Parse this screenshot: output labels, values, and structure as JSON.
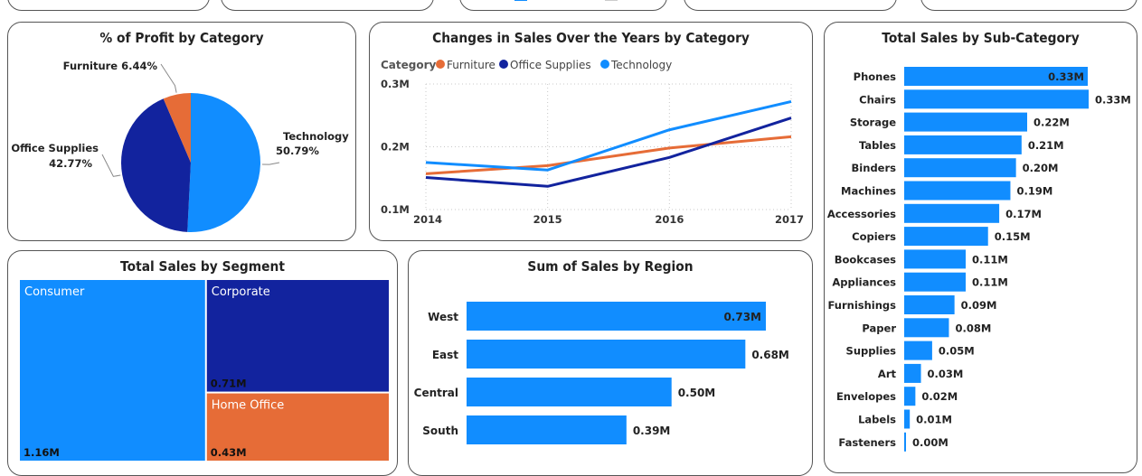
{
  "colors": {
    "furniture": "#E66C37",
    "office_supplies": "#12239E",
    "technology": "#118DFF"
  },
  "profit_by_category": {
    "title": "% of Profit by Category",
    "chart_data": {
      "type": "pie",
      "slices": [
        {
          "name": "Technology",
          "value": 50.79,
          "label": "50.79%",
          "color": "#118DFF"
        },
        {
          "name": "Office Supplies",
          "value": 42.77,
          "label": "42.77%",
          "color": "#12239E"
        },
        {
          "name": "Furniture",
          "value": 6.44,
          "label": "6.44%",
          "color": "#E66C37"
        }
      ]
    }
  },
  "sales_over_years": {
    "title": "Changes in Sales Over the Years by Category",
    "legend_title": "Category",
    "chart_data": {
      "type": "line",
      "x": [
        "2014",
        "2015",
        "2016",
        "2017"
      ],
      "ylim": [
        0.1,
        0.3
      ],
      "yticks": [
        "0.1M",
        "0.2M",
        "0.3M"
      ],
      "ytick_values": [
        0.1,
        0.2,
        0.3
      ],
      "series": [
        {
          "name": "Furniture",
          "values": [
            0.157,
            0.17,
            0.198,
            0.216
          ],
          "color": "#E66C37"
        },
        {
          "name": "Office Supplies",
          "values": [
            0.151,
            0.137,
            0.183,
            0.246
          ],
          "color": "#12239E"
        },
        {
          "name": "Technology",
          "values": [
            0.175,
            0.163,
            0.227,
            0.272
          ],
          "color": "#118DFF"
        }
      ]
    }
  },
  "sales_by_subcategory": {
    "title": "Total Sales by Sub-Category",
    "chart_data": {
      "type": "bar",
      "orientation": "horizontal",
      "categories": [
        "Phones",
        "Chairs",
        "Storage",
        "Tables",
        "Binders",
        "Machines",
        "Accessories",
        "Copiers",
        "Bookcases",
        "Appliances",
        "Furnishings",
        "Paper",
        "Supplies",
        "Art",
        "Envelopes",
        "Labels",
        "Fasteners"
      ],
      "values": [
        0.33,
        0.33,
        0.22,
        0.21,
        0.2,
        0.19,
        0.17,
        0.15,
        0.11,
        0.11,
        0.09,
        0.08,
        0.05,
        0.03,
        0.02,
        0.01,
        0.0
      ],
      "labels": [
        "0.33M",
        "0.33M",
        "0.22M",
        "0.21M",
        "0.20M",
        "0.19M",
        "0.17M",
        "0.15M",
        "0.11M",
        "0.11M",
        "0.09M",
        "0.08M",
        "0.05M",
        "0.03M",
        "0.02M",
        "0.01M",
        "0.00M"
      ],
      "bar_color": "#118DFF"
    }
  },
  "sales_by_segment": {
    "title": "Total Sales by Segment",
    "chart_data": {
      "type": "treemap",
      "items": [
        {
          "name": "Consumer",
          "value": 1.16,
          "label": "1.16M",
          "color": "#118DFF"
        },
        {
          "name": "Corporate",
          "value": 0.71,
          "label": "0.71M",
          "color": "#12239E"
        },
        {
          "name": "Home Office",
          "value": 0.43,
          "label": "0.43M",
          "color": "#E66C37"
        }
      ]
    }
  },
  "sales_by_region": {
    "title": "Sum of Sales by Region",
    "chart_data": {
      "type": "bar",
      "orientation": "horizontal",
      "categories": [
        "West",
        "East",
        "Central",
        "South"
      ],
      "values": [
        0.73,
        0.68,
        0.5,
        0.39
      ],
      "labels": [
        "0.73M",
        "0.68M",
        "0.50M",
        "0.39M"
      ],
      "bar_color": "#118DFF"
    }
  }
}
